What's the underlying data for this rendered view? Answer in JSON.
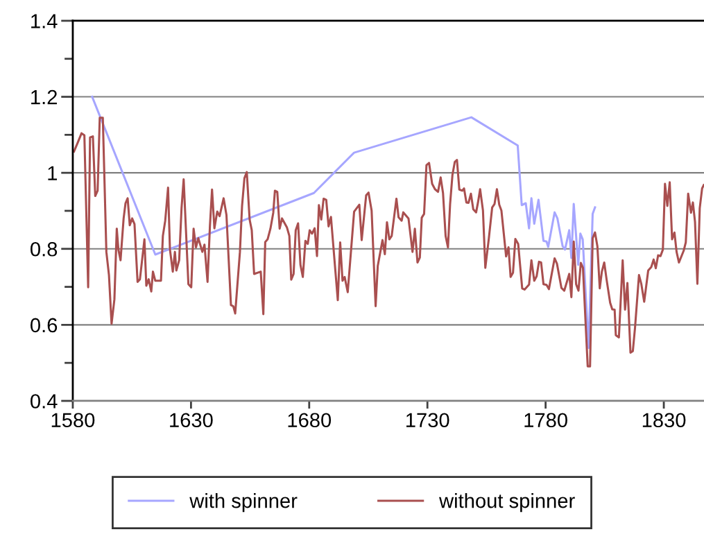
{
  "chart_data": {
    "type": "line",
    "xlim": [
      1580,
      1847
    ],
    "xticks": [
      1580,
      1630,
      1680,
      1730,
      1780,
      1830
    ],
    "ylim": [
      0.4,
      1.4
    ],
    "yticks": [
      0.4,
      {
        "value": 0.5,
        "label": null
      },
      0.6,
      {
        "value": 0.7,
        "label": null
      },
      0.8,
      {
        "value": 0.9,
        "label": null
      },
      1,
      {
        "value": 1.1,
        "label": null
      },
      1.2,
      {
        "value": 1.3,
        "label": null
      },
      1.4
    ],
    "grid": "y",
    "legend": "bottom",
    "marker": "none",
    "line_style": "solid",
    "series": [
      {
        "name": "with spinner",
        "color": "#a6a6ff",
        "x": [
          1588.2,
          1614.9,
          1682.0,
          1699.0,
          1748.6,
          1768.2,
          1769.9,
          1771.6,
          1773.0,
          1774.0,
          1775.2,
          1777.0,
          1779.1,
          1780.4,
          1781.1,
          1783.8,
          1785.0,
          1787.2,
          1788.2,
          1790.0,
          1790.9,
          1791.9,
          1793.8,
          1794.7,
          1795.7,
          1798.2,
          1799.9,
          1800.9
        ],
        "values": [
          1.2,
          0.785,
          0.947,
          1.053,
          1.146,
          1.072,
          0.915,
          0.92,
          0.854,
          0.933,
          0.866,
          0.929,
          0.821,
          0.819,
          0.805,
          0.896,
          0.88,
          0.807,
          0.798,
          0.849,
          0.776,
          0.918,
          0.758,
          0.84,
          0.825,
          0.539,
          0.892,
          0.909
        ]
      },
      {
        "name": "without spinner",
        "color": "#a94f4f",
        "x": [
          1580.5,
          1582.0,
          1583.7,
          1584.9,
          1586.5,
          1587.3,
          1588.5,
          1589.5,
          1590.5,
          1591.4,
          1592.7,
          1594.2,
          1595.3,
          1596.4,
          1597.6,
          1598.6,
          1599.3,
          1600.2,
          1601.5,
          1602.3,
          1603.2,
          1604.1,
          1605.1,
          1606.1,
          1607.4,
          1608.4,
          1610.3,
          1611.1,
          1612.1,
          1613.2,
          1613.9,
          1614.9,
          1617.3,
          1618.1,
          1619.1,
          1620.3,
          1621.1,
          1622.3,
          1623.2,
          1623.8,
          1625.0,
          1626.0,
          1626.9,
          1628.9,
          1630.1,
          1631.1,
          1632.1,
          1633.1,
          1634.8,
          1635.7,
          1637.0,
          1638.0,
          1638.9,
          1639.9,
          1641.1,
          1642.1,
          1643.8,
          1645.0,
          1646.9,
          1647.9,
          1648.7,
          1650.7,
          1651.6,
          1652.6,
          1653.6,
          1654.8,
          1655.7,
          1656.7,
          1659.5,
          1660.6,
          1661.4,
          1662.4,
          1663.6,
          1664.8,
          1665.5,
          1666.5,
          1667.5,
          1668.5,
          1670.6,
          1671.6,
          1672.4,
          1673.4,
          1674.3,
          1675.3,
          1676.3,
          1677.3,
          1678.4,
          1679.4,
          1680.2,
          1681.2,
          1682.3,
          1683.3,
          1684.1,
          1685.1,
          1686.1,
          1687.2,
          1688.2,
          1689.2,
          1690.9,
          1692.1,
          1693.1,
          1694.1,
          1695.0,
          1696.3,
          1699.0,
          1701.2,
          1702.2,
          1704.1,
          1705.1,
          1706.4,
          1708.1,
          1709.0,
          1711.0,
          1712.0,
          1712.9,
          1713.9,
          1714.9,
          1716.9,
          1717.8,
          1719.1,
          1719.8,
          1722.0,
          1723.7,
          1724.7,
          1725.8,
          1726.8,
          1727.6,
          1728.6,
          1729.6,
          1730.7,
          1732.0,
          1733.2,
          1734.5,
          1735.6,
          1736.6,
          1737.7,
          1738.7,
          1739.6,
          1740.6,
          1741.6,
          1742.5,
          1743.5,
          1744.7,
          1745.5,
          1746.5,
          1747.4,
          1748.4,
          1749.4,
          1750.6,
          1751.4,
          1752.3,
          1753.5,
          1754.5,
          1756.0,
          1757.4,
          1758.4,
          1759.4,
          1760.4,
          1761.3,
          1763.3,
          1764.3,
          1765.2,
          1766.2,
          1767.2,
          1768.4,
          1770.1,
          1771.1,
          1773.0,
          1774.0,
          1775.2,
          1776.2,
          1777.2,
          1778.1,
          1779.1,
          1780.4,
          1781.4,
          1783.8,
          1784.8,
          1786.7,
          1787.9,
          1790.0,
          1790.9,
          1791.9,
          1792.9,
          1793.9,
          1794.9,
          1795.8,
          1797.8,
          1798.8,
          1799.9,
          1800.9,
          1801.9,
          1802.9,
          1803.8,
          1804.8,
          1805.8,
          1807.3,
          1808.2,
          1809.2,
          1809.7,
          1811.0,
          1812.6,
          1813.6,
          1814.6,
          1815.9,
          1816.9,
          1817.8,
          1819.5,
          1820.5,
          1821.7,
          1823.4,
          1824.7,
          1825.7,
          1826.6,
          1827.6,
          1828.6,
          1829.6,
          1830.5,
          1831.5,
          1832.5,
          1833.5,
          1834.5,
          1835.4,
          1836.4,
          1838.4,
          1839.3,
          1840.3,
          1841.5,
          1842.3,
          1843.2,
          1844.2,
          1845.2,
          1846.2,
          1846.9
        ],
        "values": [
          1.056,
          1.078,
          1.104,
          1.099,
          0.699,
          1.093,
          1.096,
          0.939,
          0.953,
          1.145,
          1.145,
          0.792,
          0.731,
          0.603,
          0.667,
          0.853,
          0.798,
          0.77,
          0.88,
          0.92,
          0.933,
          0.862,
          0.88,
          0.865,
          0.713,
          0.72,
          0.825,
          0.703,
          0.72,
          0.688,
          0.74,
          0.716,
          0.716,
          0.834,
          0.874,
          0.961,
          0.798,
          0.74,
          0.792,
          0.743,
          0.77,
          0.907,
          0.983,
          0.707,
          0.699,
          0.853,
          0.804,
          0.828,
          0.792,
          0.811,
          0.713,
          0.859,
          0.956,
          0.854,
          0.898,
          0.886,
          0.933,
          0.889,
          0.652,
          0.649,
          0.63,
          0.792,
          0.913,
          0.986,
          1.002,
          0.877,
          0.849,
          0.734,
          0.74,
          0.628,
          0.818,
          0.825,
          0.853,
          0.895,
          0.953,
          0.95,
          0.853,
          0.88,
          0.856,
          0.834,
          0.719,
          0.734,
          0.849,
          0.867,
          0.758,
          0.726,
          0.821,
          0.813,
          0.849,
          0.84,
          0.854,
          0.781,
          0.915,
          0.877,
          0.932,
          0.929,
          0.859,
          0.884,
          0.755,
          0.665,
          0.817,
          0.716,
          0.726,
          0.686,
          0.898,
          0.916,
          0.823,
          0.941,
          0.948,
          0.901,
          0.649,
          0.755,
          0.823,
          0.786,
          0.87,
          0.825,
          0.834,
          0.932,
          0.883,
          0.874,
          0.896,
          0.88,
          0.792,
          0.853,
          0.764,
          0.777,
          0.882,
          0.892,
          1.02,
          1.026,
          0.971,
          0.957,
          0.95,
          0.988,
          0.947,
          0.834,
          0.804,
          0.918,
          0.995,
          1.029,
          1.034,
          0.956,
          0.953,
          0.959,
          0.922,
          0.921,
          0.945,
          0.904,
          0.896,
          0.922,
          0.957,
          0.901,
          0.75,
          0.828,
          0.909,
          0.918,
          0.957,
          0.916,
          0.901,
          0.78,
          0.804,
          0.726,
          0.737,
          0.826,
          0.813,
          0.696,
          0.693,
          0.706,
          0.77,
          0.716,
          0.728,
          0.766,
          0.764,
          0.707,
          0.705,
          0.694,
          0.775,
          0.761,
          0.697,
          0.69,
          0.734,
          0.673,
          0.819,
          0.707,
          0.69,
          0.763,
          0.75,
          0.491,
          0.491,
          0.828,
          0.843,
          0.807,
          0.696,
          0.74,
          0.764,
          0.719,
          0.658,
          0.641,
          0.64,
          0.573,
          0.567,
          0.77,
          0.64,
          0.71,
          0.527,
          0.531,
          0.591,
          0.731,
          0.707,
          0.661,
          0.743,
          0.752,
          0.772,
          0.749,
          0.783,
          0.781,
          0.798,
          0.971,
          0.913,
          0.975,
          0.825,
          0.843,
          0.792,
          0.764,
          0.795,
          0.817,
          0.945,
          0.895,
          0.922,
          0.871,
          0.708,
          0.907,
          0.959,
          0.968
        ]
      }
    ]
  }
}
